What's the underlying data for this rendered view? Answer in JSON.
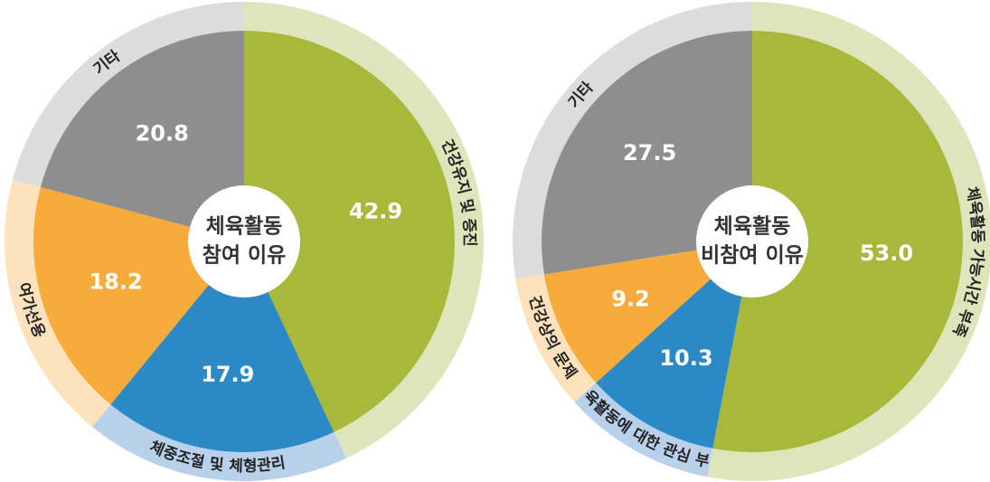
{
  "chart_data": [
    {
      "type": "pie",
      "center_label": [
        "체육활동",
        "참여 이유"
      ],
      "categories": [
        "건강유지 및 증진",
        "체중조절 및 체형관리",
        "여가선용",
        "기타"
      ],
      "values": [
        42.9,
        17.9,
        18.2,
        20.8
      ],
      "colors": [
        "#a8b83a",
        "#2b8ac6",
        "#f7ab3a",
        "#8e8e8e"
      ],
      "ring_colors": [
        "#dfe5ba",
        "#b9d0ea",
        "#fde2bd",
        "#dcdcdc"
      ]
    },
    {
      "type": "pie",
      "center_label": [
        "체육활동",
        "비참여 이유"
      ],
      "categories": [
        "체육활동 가능시간 부족",
        "체육활동에 대한 관심 부족",
        "건강상의 문제",
        "기타"
      ],
      "values": [
        53,
        10.3,
        9.2,
        27.5
      ],
      "value_labels": [
        "53.0",
        "10.3",
        "9.2",
        "27.5"
      ],
      "colors": [
        "#a8b83a",
        "#2b8ac6",
        "#f7ab3a",
        "#8e8e8e"
      ],
      "ring_colors": [
        "#dfe5ba",
        "#b9d0ea",
        "#fde2bd",
        "#dcdcdc"
      ]
    }
  ]
}
